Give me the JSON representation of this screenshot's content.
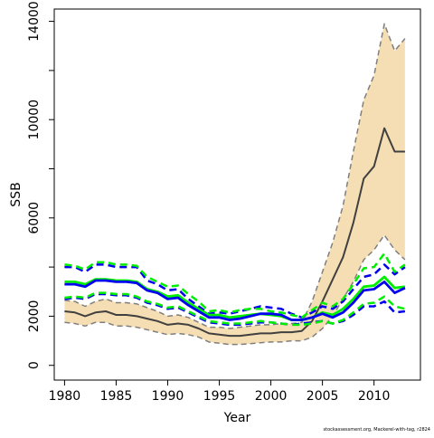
{
  "chart_data": {
    "type": "line",
    "title": "",
    "xlabel": "Year",
    "ylabel": "SSB",
    "xlim": [
      1979,
      2014.5
    ],
    "ylim": [
      -600,
      14500
    ],
    "xticks": [
      1980,
      1985,
      1990,
      1995,
      2000,
      2005,
      2010
    ],
    "yticks": [
      0,
      2000,
      6000,
      10000,
      14000
    ],
    "grid": false,
    "legend": "none",
    "x": [
      1980,
      1981,
      1982,
      1983,
      1984,
      1985,
      1986,
      1987,
      1988,
      1989,
      1990,
      1991,
      1992,
      1993,
      1994,
      1995,
      1996,
      1997,
      1998,
      1999,
      2000,
      2001,
      2002,
      2003,
      2004,
      2005,
      2006,
      2007,
      2008,
      2009,
      2010,
      2011,
      2012,
      2013
    ],
    "series": [
      {
        "role": "band-lower",
        "color": "#7f7f7f",
        "values": [
          1750,
          1700,
          1600,
          1750,
          1750,
          1600,
          1600,
          1550,
          1450,
          1350,
          1250,
          1300,
          1250,
          1150,
          950,
          900,
          850,
          850,
          880,
          920,
          950,
          950,
          1000,
          1000,
          1150,
          1500,
          2000,
          2700,
          3400,
          4300,
          4700,
          5300,
          4700,
          4300
        ]
      },
      {
        "role": "band-upper",
        "color": "#7f7f7f",
        "values": [
          2650,
          2600,
          2400,
          2600,
          2700,
          2550,
          2550,
          2500,
          2350,
          2200,
          2000,
          2050,
          1950,
          1750,
          1550,
          1550,
          1500,
          1550,
          1600,
          1650,
          1650,
          1700,
          1700,
          1750,
          2600,
          3800,
          5000,
          6500,
          8700,
          10800,
          11800,
          13900,
          12800,
          13300
        ]
      },
      {
        "role": "median",
        "color": "#404040",
        "values": [
          2200,
          2150,
          2000,
          2150,
          2200,
          2050,
          2050,
          2000,
          1900,
          1800,
          1650,
          1700,
          1650,
          1500,
          1300,
          1250,
          1200,
          1200,
          1250,
          1300,
          1300,
          1350,
          1350,
          1400,
          1800,
          2600,
          3500,
          4400,
          5800,
          7600,
          8100,
          9650,
          8700,
          8700
        ]
      },
      {
        "role": "blue-mid",
        "color": "#0000ee",
        "values": [
          3300,
          3300,
          3200,
          3450,
          3450,
          3400,
          3400,
          3350,
          3050,
          2950,
          2700,
          2750,
          2450,
          2200,
          1950,
          1950,
          1850,
          1900,
          2000,
          2100,
          2100,
          2050,
          1850,
          1850,
          1950,
          2100,
          1950,
          2150,
          2550,
          3050,
          3100,
          3400,
          2950,
          3150
        ]
      },
      {
        "role": "blue-upper",
        "color": "#0000ee",
        "values": [
          4000,
          4000,
          3800,
          4100,
          4100,
          4000,
          4000,
          4000,
          3450,
          3300,
          3050,
          3100,
          2700,
          2400,
          2100,
          2150,
          2100,
          2200,
          2300,
          2400,
          2350,
          2300,
          2100,
          1950,
          2150,
          2400,
          2300,
          2600,
          3100,
          3600,
          3700,
          4100,
          3700,
          4000
        ]
      },
      {
        "role": "blue-lower",
        "color": "#0000ee",
        "values": [
          2700,
          2750,
          2700,
          2900,
          2900,
          2850,
          2850,
          2750,
          2550,
          2450,
          2300,
          2350,
          2150,
          1950,
          1750,
          1700,
          1650,
          1650,
          1700,
          1750,
          1750,
          1700,
          1650,
          1700,
          1750,
          1800,
          1700,
          1800,
          2050,
          2400,
          2400,
          2600,
          2150,
          2200
        ]
      },
      {
        "role": "green-mid",
        "color": "#00ee00",
        "values": [
          3400,
          3400,
          3300,
          3500,
          3500,
          3450,
          3450,
          3400,
          3100,
          3000,
          2800,
          2850,
          2550,
          2300,
          2050,
          2050,
          1950,
          2000,
          2050,
          2100,
          2050,
          2000,
          1850,
          1850,
          1950,
          2150,
          2050,
          2300,
          2700,
          3200,
          3250,
          3600,
          3150,
          3200
        ]
      },
      {
        "role": "green-upper",
        "color": "#00ee00",
        "values": [
          4100,
          4050,
          3900,
          4200,
          4200,
          4100,
          4100,
          4050,
          3600,
          3400,
          3200,
          3250,
          2900,
          2600,
          2200,
          2250,
          2150,
          2250,
          2300,
          2300,
          2200,
          2150,
          2050,
          1950,
          2250,
          2550,
          2400,
          2700,
          3300,
          3950,
          4000,
          4550,
          3800,
          4100
        ]
      },
      {
        "role": "green-lower",
        "color": "#00ee00",
        "values": [
          2750,
          2800,
          2750,
          2950,
          2950,
          2900,
          2900,
          2800,
          2600,
          2500,
          2350,
          2400,
          2200,
          2000,
          1800,
          1750,
          1700,
          1700,
          1750,
          1800,
          1750,
          1700,
          1650,
          1650,
          1700,
          1800,
          1700,
          1850,
          2150,
          2500,
          2550,
          2800,
          2400,
          2300
        ]
      }
    ]
  },
  "footer": "stockassessment.org, Mackerel-with-tag, r2824"
}
